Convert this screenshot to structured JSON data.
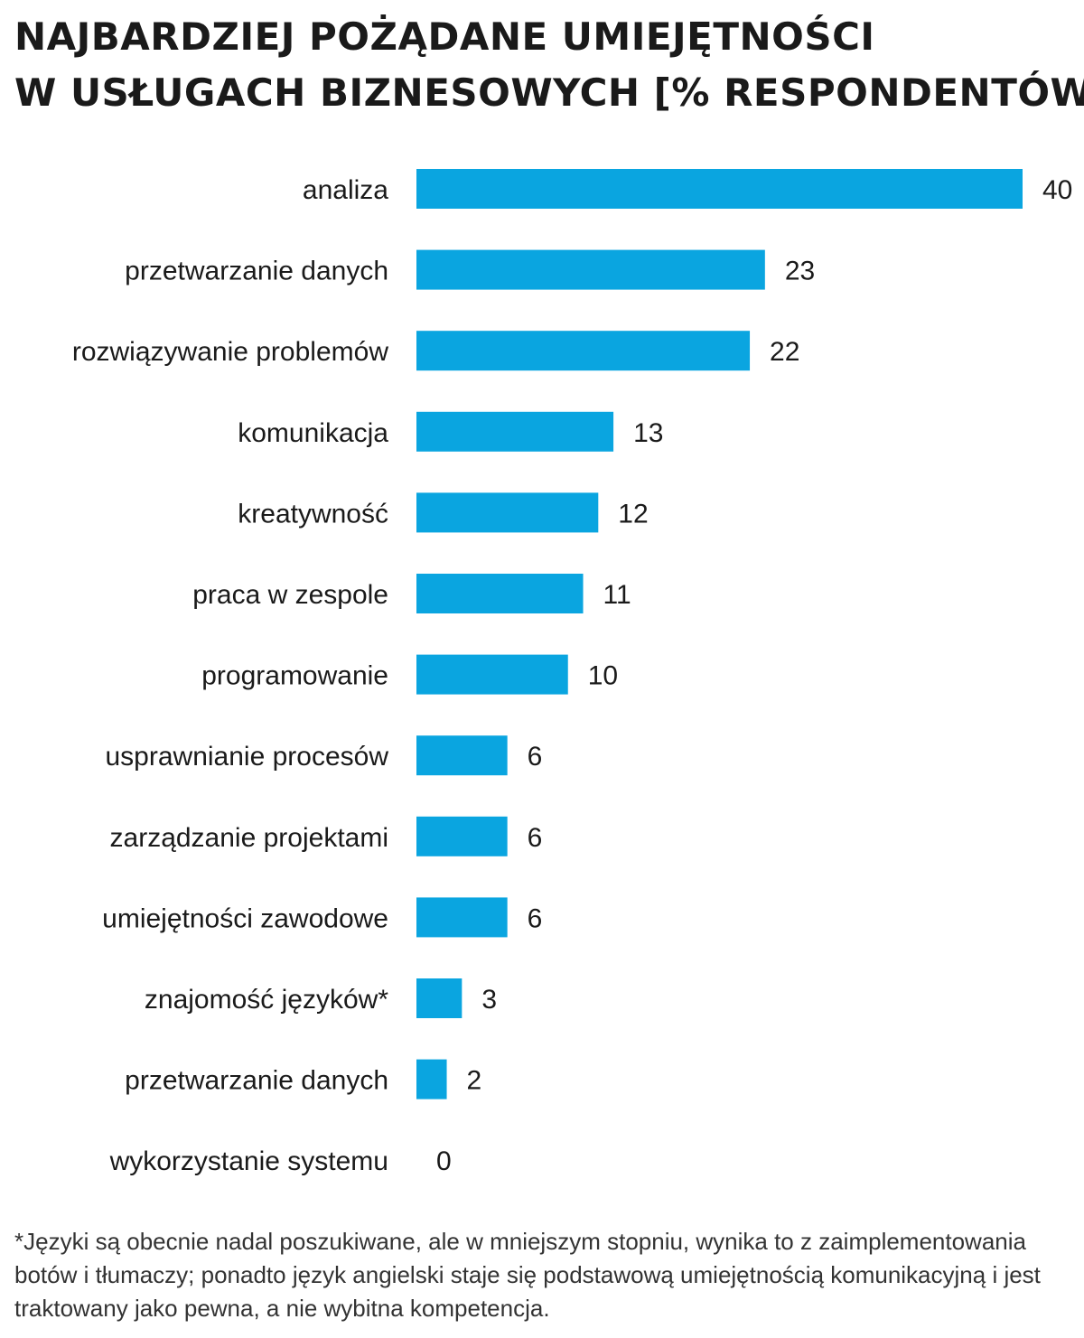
{
  "header": {
    "title_line1": "NAJBARDZIEJ POŻĄDANE UMIEJĘTNOŚCI",
    "title_line2": "W USŁUGACH BIZNESOWYCH [% RESPONDENTÓW]"
  },
  "footnote": "*Języki są obecnie nadal poszukiwane, ale w mniejszym stopniu, wynika to z zaimplementowania botów i tłumaczy; ponadto język angielski staje się podstawową umiejętnością komunikacyjną i jest traktowany jako pewna, a nie wybitna kompetencja.",
  "colors": {
    "bar": "#0aa5e0",
    "text": "#1a1a1a"
  },
  "chart_data": {
    "type": "bar",
    "orientation": "horizontal",
    "title": "NAJBARDZIEJ POŻĄDANE UMIEJĘTNOŚCI W USŁUGACH BIZNESOWYCH [% RESPONDENTÓW]",
    "xlim": [
      0,
      40
    ],
    "grid": false,
    "legend": "none",
    "categories": [
      "analiza",
      "przetwarzanie danych",
      "rozwiązywanie problemów",
      "komunikacja",
      "kreatywność",
      "praca w zespole",
      "programowanie",
      "usprawnianie procesów",
      "zarządzanie projektami",
      "umiejętności zawodowe",
      "znajomość języków*",
      "przetwarzanie danych",
      "wykorzystanie systemu"
    ],
    "values": [
      40,
      23,
      22,
      13,
      12,
      11,
      10,
      6,
      6,
      6,
      3,
      2,
      0
    ],
    "value_labels": [
      "40",
      "23",
      "22",
      "13",
      "12",
      "11",
      "10",
      "6",
      "6",
      "6",
      "3",
      "2",
      "0"
    ]
  }
}
